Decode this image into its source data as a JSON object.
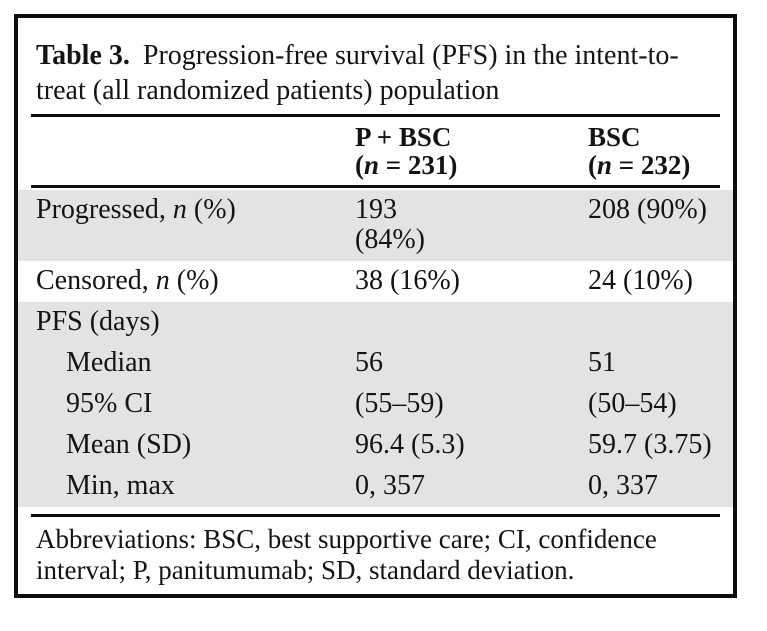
{
  "table": {
    "title_label": "Table 3.",
    "title_text": "Progression-free survival (PFS) in the intent-to-treat (all randomized patients) population",
    "columns": [
      {
        "name": "P + BSC",
        "n_pre": "(",
        "n_italic": "n",
        "n_post": " = 231)"
      },
      {
        "name": "BSC",
        "n_pre": "(",
        "n_italic": "n",
        "n_post": " = 232)"
      }
    ],
    "rows": [
      {
        "label_pre": "Progressed, ",
        "label_it": "n",
        "label_post": " (%)",
        "c1": [
          "193",
          "(84%)"
        ],
        "c2": [
          "208 (90%)"
        ]
      },
      {
        "label_pre": "Censored, ",
        "label_it": "n",
        "label_post": " (%)",
        "c1": [
          "38 (16%)"
        ],
        "c2": [
          "24 (10%)"
        ]
      },
      {
        "label_pre": "PFS (days)"
      },
      {
        "label_pre": "Median",
        "c1": [
          "56"
        ],
        "c2": [
          "51"
        ]
      },
      {
        "label_pre": "95% CI",
        "c1": [
          "(55–59)"
        ],
        "c2": [
          "(50–54)"
        ]
      },
      {
        "label_pre": "Mean (SD)",
        "c1": [
          "96.4 (5.3)"
        ],
        "c2": [
          "59.7 (3.75)"
        ]
      },
      {
        "label_pre": "Min, max",
        "c1": [
          "0, 357"
        ],
        "c2": [
          "0, 337"
        ]
      }
    ],
    "footnote": "Abbreviations: BSC, best supportive care; CI, confidence interval; P, panitumumab; SD, standard deviation.",
    "colors": {
      "shade": "#e3e3e3",
      "rule": "#0d0d0d",
      "text": "#141414"
    }
  }
}
